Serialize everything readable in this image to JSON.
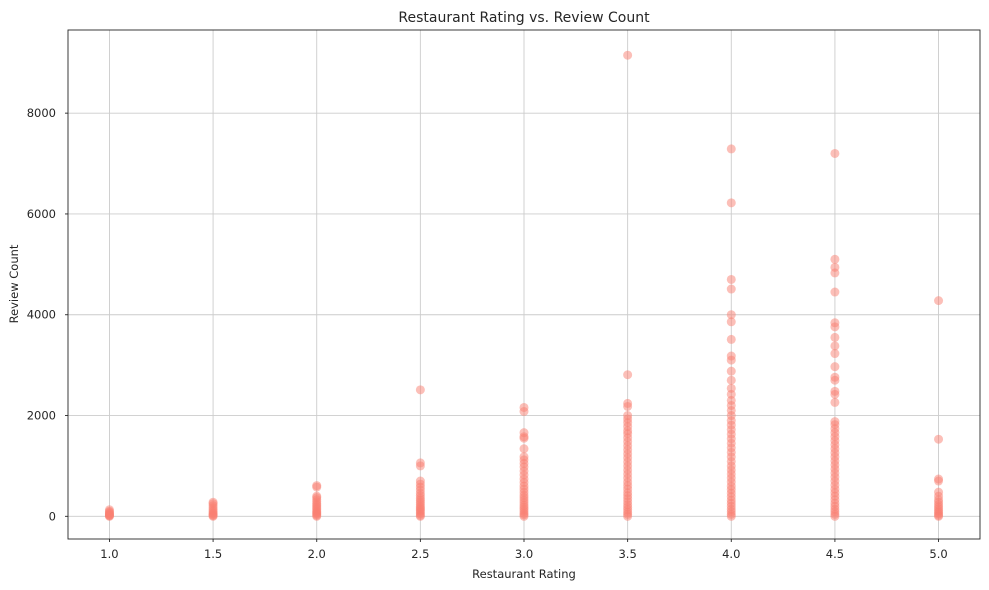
{
  "chart_data": {
    "type": "scatter",
    "title": "Restaurant Rating vs. Review Count",
    "xlabel": "Restaurant Rating",
    "ylabel": "Review Count",
    "xlim": [
      0.8,
      5.2
    ],
    "ylim": [
      -450,
      9650
    ],
    "xticks": [
      "1.0",
      "1.5",
      "2.0",
      "2.5",
      "3.0",
      "3.5",
      "4.0",
      "4.5",
      "5.0"
    ],
    "yticks": [
      "0",
      "2000",
      "4000",
      "6000",
      "8000"
    ],
    "grid": true,
    "marker_color": "#fa8072",
    "marker_alpha": 0.5,
    "series": [
      {
        "points": [
          [
            1.0,
            0
          ],
          [
            1.0,
            10
          ],
          [
            1.0,
            20
          ],
          [
            1.0,
            30
          ],
          [
            1.0,
            45
          ],
          [
            1.0,
            60
          ],
          [
            1.0,
            80
          ],
          [
            1.0,
            100
          ],
          [
            1.0,
            130
          ],
          [
            1.5,
            0
          ],
          [
            1.5,
            15
          ],
          [
            1.5,
            30
          ],
          [
            1.5,
            50
          ],
          [
            1.5,
            70
          ],
          [
            1.5,
            100
          ],
          [
            1.5,
            130
          ],
          [
            1.5,
            170
          ],
          [
            1.5,
            210
          ],
          [
            1.5,
            250
          ],
          [
            1.5,
            280
          ],
          [
            2.0,
            0
          ],
          [
            2.0,
            20
          ],
          [
            2.0,
            40
          ],
          [
            2.0,
            60
          ],
          [
            2.0,
            80
          ],
          [
            2.0,
            100
          ],
          [
            2.0,
            130
          ],
          [
            2.0,
            160
          ],
          [
            2.0,
            190
          ],
          [
            2.0,
            220
          ],
          [
            2.0,
            250
          ],
          [
            2.0,
            290
          ],
          [
            2.0,
            330
          ],
          [
            2.0,
            370
          ],
          [
            2.0,
            400
          ],
          [
            2.0,
            580
          ],
          [
            2.0,
            610
          ],
          [
            2.5,
            0
          ],
          [
            2.5,
            20
          ],
          [
            2.5,
            50
          ],
          [
            2.5,
            80
          ],
          [
            2.5,
            110
          ],
          [
            2.5,
            140
          ],
          [
            2.5,
            170
          ],
          [
            2.5,
            200
          ],
          [
            2.5,
            240
          ],
          [
            2.5,
            280
          ],
          [
            2.5,
            320
          ],
          [
            2.5,
            360
          ],
          [
            2.5,
            410
          ],
          [
            2.5,
            460
          ],
          [
            2.5,
            520
          ],
          [
            2.5,
            580
          ],
          [
            2.5,
            640
          ],
          [
            2.5,
            700
          ],
          [
            2.5,
            1000
          ],
          [
            2.5,
            1060
          ],
          [
            2.5,
            2510
          ],
          [
            3.0,
            0
          ],
          [
            3.0,
            30
          ],
          [
            3.0,
            60
          ],
          [
            3.0,
            100
          ],
          [
            3.0,
            140
          ],
          [
            3.0,
            180
          ],
          [
            3.0,
            220
          ],
          [
            3.0,
            270
          ],
          [
            3.0,
            320
          ],
          [
            3.0,
            370
          ],
          [
            3.0,
            420
          ],
          [
            3.0,
            480
          ],
          [
            3.0,
            540
          ],
          [
            3.0,
            600
          ],
          [
            3.0,
            670
          ],
          [
            3.0,
            740
          ],
          [
            3.0,
            820
          ],
          [
            3.0,
            900
          ],
          [
            3.0,
            980
          ],
          [
            3.0,
            1050
          ],
          [
            3.0,
            1120
          ],
          [
            3.0,
            1180
          ],
          [
            3.0,
            1340
          ],
          [
            3.0,
            1550
          ],
          [
            3.0,
            1580
          ],
          [
            3.0,
            1660
          ],
          [
            3.0,
            2080
          ],
          [
            3.0,
            2160
          ],
          [
            3.5,
            0
          ],
          [
            3.5,
            40
          ],
          [
            3.5,
            80
          ],
          [
            3.5,
            130
          ],
          [
            3.5,
            180
          ],
          [
            3.5,
            230
          ],
          [
            3.5,
            290
          ],
          [
            3.5,
            350
          ],
          [
            3.5,
            410
          ],
          [
            3.5,
            470
          ],
          [
            3.5,
            540
          ],
          [
            3.5,
            610
          ],
          [
            3.5,
            680
          ],
          [
            3.5,
            760
          ],
          [
            3.5,
            840
          ],
          [
            3.5,
            920
          ],
          [
            3.5,
            1000
          ],
          [
            3.5,
            1080
          ],
          [
            3.5,
            1160
          ],
          [
            3.5,
            1240
          ],
          [
            3.5,
            1320
          ],
          [
            3.5,
            1400
          ],
          [
            3.5,
            1480
          ],
          [
            3.5,
            1560
          ],
          [
            3.5,
            1640
          ],
          [
            3.5,
            1700
          ],
          [
            3.5,
            1780
          ],
          [
            3.5,
            1860
          ],
          [
            3.5,
            1930
          ],
          [
            3.5,
            2000
          ],
          [
            3.5,
            2180
          ],
          [
            3.5,
            2240
          ],
          [
            3.5,
            2810
          ],
          [
            3.5,
            9150
          ],
          [
            4.0,
            0
          ],
          [
            4.0,
            40
          ],
          [
            4.0,
            90
          ],
          [
            4.0,
            140
          ],
          [
            4.0,
            200
          ],
          [
            4.0,
            260
          ],
          [
            4.0,
            320
          ],
          [
            4.0,
            390
          ],
          [
            4.0,
            460
          ],
          [
            4.0,
            530
          ],
          [
            4.0,
            600
          ],
          [
            4.0,
            680
          ],
          [
            4.0,
            760
          ],
          [
            4.0,
            840
          ],
          [
            4.0,
            920
          ],
          [
            4.0,
            1000
          ],
          [
            4.0,
            1090
          ],
          [
            4.0,
            1180
          ],
          [
            4.0,
            1270
          ],
          [
            4.0,
            1360
          ],
          [
            4.0,
            1450
          ],
          [
            4.0,
            1540
          ],
          [
            4.0,
            1630
          ],
          [
            4.0,
            1720
          ],
          [
            4.0,
            1810
          ],
          [
            4.0,
            1900
          ],
          [
            4.0,
            2000
          ],
          [
            4.0,
            2100
          ],
          [
            4.0,
            2200
          ],
          [
            4.0,
            2300
          ],
          [
            4.0,
            2420
          ],
          [
            4.0,
            2540
          ],
          [
            4.0,
            2700
          ],
          [
            4.0,
            2880
          ],
          [
            4.0,
            3100
          ],
          [
            4.0,
            3180
          ],
          [
            4.0,
            3510
          ],
          [
            4.0,
            3860
          ],
          [
            4.0,
            4000
          ],
          [
            4.0,
            4510
          ],
          [
            4.0,
            4700
          ],
          [
            4.0,
            6220
          ],
          [
            4.0,
            7290
          ],
          [
            4.5,
            0
          ],
          [
            4.5,
            40
          ],
          [
            4.5,
            90
          ],
          [
            4.5,
            140
          ],
          [
            4.5,
            200
          ],
          [
            4.5,
            260
          ],
          [
            4.5,
            330
          ],
          [
            4.5,
            400
          ],
          [
            4.5,
            470
          ],
          [
            4.5,
            540
          ],
          [
            4.5,
            620
          ],
          [
            4.5,
            700
          ],
          [
            4.5,
            780
          ],
          [
            4.5,
            860
          ],
          [
            4.5,
            940
          ],
          [
            4.5,
            1020
          ],
          [
            4.5,
            1100
          ],
          [
            4.5,
            1180
          ],
          [
            4.5,
            1260
          ],
          [
            4.5,
            1340
          ],
          [
            4.5,
            1420
          ],
          [
            4.5,
            1500
          ],
          [
            4.5,
            1580
          ],
          [
            4.5,
            1660
          ],
          [
            4.5,
            1740
          ],
          [
            4.5,
            1820
          ],
          [
            4.5,
            1880
          ],
          [
            4.5,
            2260
          ],
          [
            4.5,
            2420
          ],
          [
            4.5,
            2480
          ],
          [
            4.5,
            2700
          ],
          [
            4.5,
            2760
          ],
          [
            4.5,
            2970
          ],
          [
            4.5,
            3230
          ],
          [
            4.5,
            3380
          ],
          [
            4.5,
            3550
          ],
          [
            4.5,
            3760
          ],
          [
            4.5,
            3840
          ],
          [
            4.5,
            4450
          ],
          [
            4.5,
            4830
          ],
          [
            4.5,
            4940
          ],
          [
            4.5,
            5100
          ],
          [
            4.5,
            7200
          ],
          [
            5.0,
            0
          ],
          [
            5.0,
            20
          ],
          [
            5.0,
            50
          ],
          [
            5.0,
            80
          ],
          [
            5.0,
            110
          ],
          [
            5.0,
            150
          ],
          [
            5.0,
            190
          ],
          [
            5.0,
            230
          ],
          [
            5.0,
            280
          ],
          [
            5.0,
            330
          ],
          [
            5.0,
            400
          ],
          [
            5.0,
            480
          ],
          [
            5.0,
            700
          ],
          [
            5.0,
            740
          ],
          [
            5.0,
            1530
          ],
          [
            5.0,
            4280
          ]
        ]
      }
    ]
  }
}
